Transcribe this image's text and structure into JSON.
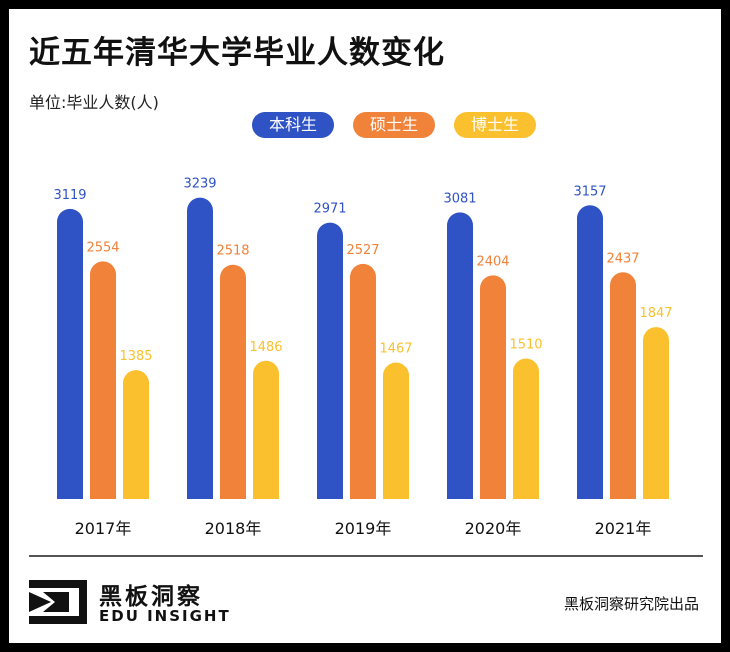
{
  "header": {
    "title": "近五年清华大学毕业人数变化",
    "unit_label": "单位:毕业人数(人)"
  },
  "chart_data": {
    "type": "bar",
    "title": "近五年清华大学毕业人数变化",
    "ylabel": "单位:毕业人数(人)",
    "xlabel": "",
    "categories": [
      "2017年",
      "2018年",
      "2019年",
      "2020年",
      "2021年"
    ],
    "series": [
      {
        "name": "本科生",
        "color": "#2f52c4",
        "values": [
          3119,
          3239,
          2971,
          3081,
          3157
        ]
      },
      {
        "name": "硕士生",
        "color": "#f0823a",
        "values": [
          2554,
          2518,
          2527,
          2404,
          2437
        ]
      },
      {
        "name": "博士生",
        "color": "#fbc02d",
        "values": [
          1385,
          1486,
          1467,
          1510,
          1847
        ]
      }
    ],
    "ylim": [
      0,
      3300
    ],
    "legend_position": "top-center",
    "grid": false
  },
  "footer": {
    "brand_name": "黑板洞察",
    "brand_en": "EDU INSIGHT",
    "credit": "黑板洞察研究院出品"
  }
}
